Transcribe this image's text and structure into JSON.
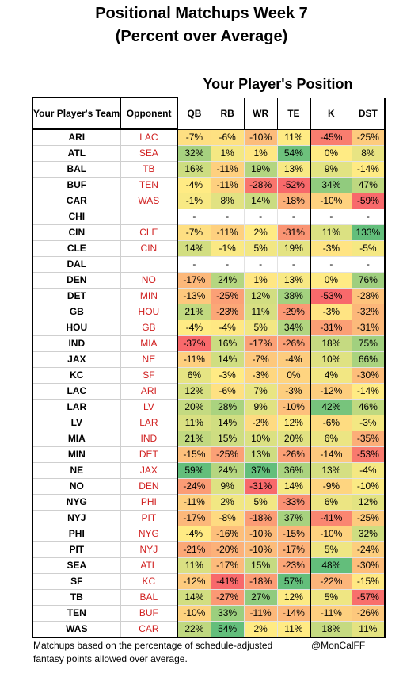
{
  "title_line1": "Positional Matchups Week 7",
  "title_line2": "(Percent over Average)",
  "subtitle": "Your Player's Position",
  "col_team": "Your Player's Team",
  "col_opp": "Opponent",
  "positions": [
    "QB",
    "RB",
    "WR",
    "TE",
    "K",
    "DST"
  ],
  "footer_note": "Matchups based on the percentage of schedule-adjusted fantasy points allowed over average.",
  "footer_credit": "@MonCalFF",
  "colors": {
    "red": "#f8696b",
    "yellow": "#ffeb84",
    "green": "#63be7b",
    "opponent_text": "#d02020"
  },
  "chart_data": {
    "type": "heatmap",
    "title": "Positional Matchups Week 7",
    "subtitle": "(Percent over Average)",
    "ylabel": "Your Player's Team",
    "xlabel": "Your Player's Position",
    "columns": [
      "QB",
      "RB",
      "WR",
      "TE",
      "K",
      "DST"
    ],
    "rows": [
      {
        "team": "ARI",
        "opp": "LAC",
        "values": [
          "-7%",
          "-6%",
          "-10%",
          "11%",
          "-45%",
          "-25%"
        ]
      },
      {
        "team": "ATL",
        "opp": "SEA",
        "values": [
          "32%",
          "1%",
          "1%",
          "54%",
          "0%",
          "8%"
        ]
      },
      {
        "team": "BAL",
        "opp": "TB",
        "values": [
          "16%",
          "-11%",
          "19%",
          "13%",
          "9%",
          "-14%"
        ]
      },
      {
        "team": "BUF",
        "opp": "TEN",
        "values": [
          "-4%",
          "-11%",
          "-28%",
          "-52%",
          "34%",
          "47%"
        ]
      },
      {
        "team": "CAR",
        "opp": "WAS",
        "values": [
          "-1%",
          "8%",
          "14%",
          "-18%",
          "-10%",
          "-59%"
        ]
      },
      {
        "team": "CHI",
        "opp": "",
        "values": [
          "-",
          "-",
          "-",
          "-",
          "-",
          "-"
        ]
      },
      {
        "team": "CIN",
        "opp": "CLE",
        "values": [
          "-7%",
          "-11%",
          "2%",
          "-31%",
          "11%",
          "133%"
        ]
      },
      {
        "team": "CLE",
        "opp": "CIN",
        "values": [
          "14%",
          "-1%",
          "5%",
          "19%",
          "-3%",
          "-5%"
        ]
      },
      {
        "team": "DAL",
        "opp": "",
        "values": [
          "-",
          "-",
          "-",
          "-",
          "-",
          "-"
        ]
      },
      {
        "team": "DEN",
        "opp": "NO",
        "values": [
          "-17%",
          "24%",
          "1%",
          "13%",
          "0%",
          "76%"
        ]
      },
      {
        "team": "DET",
        "opp": "MIN",
        "values": [
          "-13%",
          "-25%",
          "12%",
          "38%",
          "-53%",
          "-28%"
        ]
      },
      {
        "team": "GB",
        "opp": "HOU",
        "values": [
          "21%",
          "-23%",
          "11%",
          "-29%",
          "-3%",
          "-32%"
        ]
      },
      {
        "team": "HOU",
        "opp": "GB",
        "values": [
          "-4%",
          "-4%",
          "5%",
          "34%",
          "-31%",
          "-31%"
        ]
      },
      {
        "team": "IND",
        "opp": "MIA",
        "values": [
          "-37%",
          "16%",
          "-17%",
          "-26%",
          "18%",
          "75%"
        ]
      },
      {
        "team": "JAX",
        "opp": "NE",
        "values": [
          "-11%",
          "14%",
          "-7%",
          "-4%",
          "10%",
          "66%"
        ]
      },
      {
        "team": "KC",
        "opp": "SF",
        "values": [
          "6%",
          "-3%",
          "-3%",
          "0%",
          "4%",
          "-30%"
        ]
      },
      {
        "team": "LAC",
        "opp": "ARI",
        "values": [
          "12%",
          "-6%",
          "7%",
          "-3%",
          "-12%",
          "-14%"
        ]
      },
      {
        "team": "LAR",
        "opp": "LV",
        "values": [
          "20%",
          "28%",
          "9%",
          "-10%",
          "42%",
          "46%"
        ]
      },
      {
        "team": "LV",
        "opp": "LAR",
        "values": [
          "11%",
          "14%",
          "-2%",
          "12%",
          "-6%",
          "-3%"
        ]
      },
      {
        "team": "MIA",
        "opp": "IND",
        "values": [
          "21%",
          "15%",
          "10%",
          "20%",
          "6%",
          "-35%"
        ]
      },
      {
        "team": "MIN",
        "opp": "DET",
        "values": [
          "-15%",
          "-25%",
          "13%",
          "-26%",
          "-14%",
          "-53%"
        ]
      },
      {
        "team": "NE",
        "opp": "JAX",
        "values": [
          "59%",
          "24%",
          "37%",
          "36%",
          "13%",
          "-4%"
        ]
      },
      {
        "team": "NO",
        "opp": "DEN",
        "values": [
          "-24%",
          "9%",
          "-31%",
          "14%",
          "-9%",
          "-10%"
        ]
      },
      {
        "team": "NYG",
        "opp": "PHI",
        "values": [
          "-11%",
          "2%",
          "5%",
          "-33%",
          "6%",
          "12%"
        ]
      },
      {
        "team": "NYJ",
        "opp": "PIT",
        "values": [
          "-17%",
          "-8%",
          "-18%",
          "37%",
          "-41%",
          "-25%"
        ]
      },
      {
        "team": "PHI",
        "opp": "NYG",
        "values": [
          "-4%",
          "-16%",
          "-10%",
          "-15%",
          "-10%",
          "32%"
        ]
      },
      {
        "team": "PIT",
        "opp": "NYJ",
        "values": [
          "-21%",
          "-20%",
          "-10%",
          "-17%",
          "5%",
          "-24%"
        ]
      },
      {
        "team": "SEA",
        "opp": "ATL",
        "values": [
          "11%",
          "-17%",
          "15%",
          "-23%",
          "48%",
          "-30%"
        ]
      },
      {
        "team": "SF",
        "opp": "KC",
        "values": [
          "-12%",
          "-41%",
          "-18%",
          "57%",
          "-22%",
          "-15%"
        ]
      },
      {
        "team": "TB",
        "opp": "BAL",
        "values": [
          "14%",
          "-27%",
          "27%",
          "12%",
          "5%",
          "-57%"
        ]
      },
      {
        "team": "TEN",
        "opp": "BUF",
        "values": [
          "-10%",
          "33%",
          "-11%",
          "-14%",
          "-11%",
          "-26%"
        ]
      },
      {
        "team": "WAS",
        "opp": "CAR",
        "values": [
          "22%",
          "54%",
          "2%",
          "11%",
          "18%",
          "11%"
        ]
      }
    ]
  }
}
